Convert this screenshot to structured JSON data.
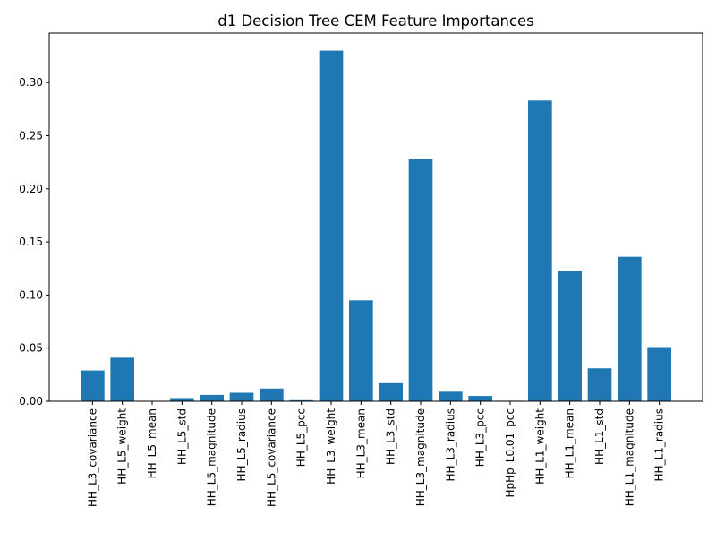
{
  "chart_data": {
    "type": "bar",
    "title": "d1 Decision Tree CEM Feature Importances",
    "xlabel": "",
    "ylabel": "",
    "categories": [
      "HH_L3_covariance",
      "HH_L5_weight",
      "HH_L5_mean",
      "HH_L5_std",
      "HH_L5_magnitude",
      "HH_L5_radius",
      "HH_L5_covariance",
      "HH_L5_pcc",
      "HH_L3_weight",
      "HH_L3_mean",
      "HH_L3_std",
      "HH_L3_magnitude",
      "HH_L3_radius",
      "HH_L3_pcc",
      "HpHp_L0.01_pcc",
      "HH_L1_weight",
      "HH_L1_mean",
      "HH_L1_std",
      "HH_L1_magnitude",
      "HH_L1_radius"
    ],
    "values": [
      0.029,
      0.041,
      0.0,
      0.003,
      0.006,
      0.008,
      0.012,
      0.001,
      0.33,
      0.095,
      0.017,
      0.228,
      0.009,
      0.005,
      0.0005,
      0.283,
      0.123,
      0.031,
      0.136,
      0.051
    ],
    "ylim": [
      0.0,
      0.3465
    ],
    "yticks": [
      0.0,
      0.05,
      0.1,
      0.15,
      0.2,
      0.25,
      0.3
    ],
    "ytick_labels": [
      "0.00",
      "0.05",
      "0.10",
      "0.15",
      "0.20",
      "0.25",
      "0.30"
    ],
    "bar_color": "#1f77b4",
    "grid": false,
    "legend": "none"
  }
}
